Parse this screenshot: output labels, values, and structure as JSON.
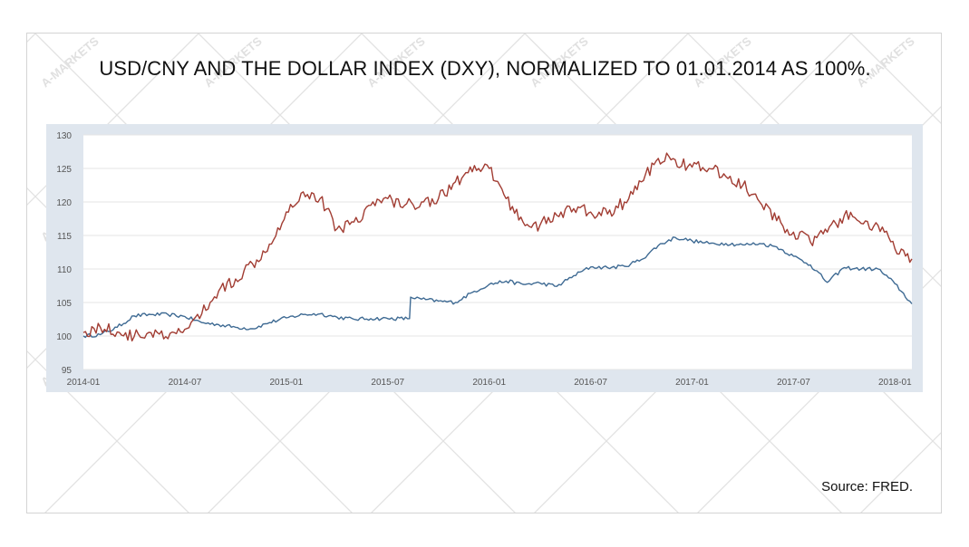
{
  "title": "USD/CNY AND THE DOLLAR INDEX (DXY), NORMALIZED TO 01.01.2014 AS 100%.",
  "source": "Source: FRED.",
  "watermark_text": "A-MARKETS",
  "colors": {
    "usd_cny": "#3e6a93",
    "dxy": "#a13c32",
    "panel": "#dfe6ee",
    "grid": "#e6e6e6"
  },
  "chart_data": {
    "type": "line",
    "title": "USD/CNY AND THE DOLLAR INDEX (DXY), NORMALIZED TO 01.01.2014 AS 100%.",
    "xlabel": "",
    "ylabel": "",
    "x_range": [
      "2014-01",
      "2018-02"
    ],
    "ylim": [
      95,
      130
    ],
    "grid": true,
    "x_tick_labels": [
      "2014-01",
      "2014-07",
      "2015-01",
      "2015-07",
      "2016-01",
      "2016-07",
      "2017-01",
      "2017-07",
      "2018-01"
    ],
    "y_tick_labels": [
      "95",
      "100",
      "105",
      "110",
      "115",
      "120",
      "125",
      "130"
    ],
    "series": [
      {
        "key": "usd_cny",
        "x": [
          "2014-01",
          "2014-02",
          "2014-03",
          "2014-04",
          "2014-05",
          "2014-06",
          "2014-07",
          "2014-08",
          "2014-09",
          "2014-10",
          "2014-11",
          "2014-12",
          "2015-01",
          "2015-02",
          "2015-03",
          "2015-04",
          "2015-05",
          "2015-06",
          "2015-07",
          "2015-08-10",
          "2015-08-12",
          "2015-09",
          "2015-10",
          "2015-11",
          "2015-12",
          "2016-01",
          "2016-02",
          "2016-03",
          "2016-04",
          "2016-05",
          "2016-06",
          "2016-07",
          "2016-08",
          "2016-09",
          "2016-10",
          "2016-11",
          "2016-12",
          "2017-01",
          "2017-02",
          "2017-03",
          "2017-04",
          "2017-05",
          "2017-06",
          "2017-07",
          "2017-08",
          "2017-09",
          "2017-10",
          "2017-11",
          "2017-12",
          "2018-01",
          "2018-02"
        ],
        "values": [
          100.0,
          100.2,
          101.3,
          103.0,
          103.2,
          103.2,
          102.9,
          102.0,
          101.7,
          101.3,
          101.1,
          102.0,
          102.7,
          103.2,
          103.3,
          102.8,
          102.5,
          102.6,
          102.6,
          102.6,
          105.8,
          105.5,
          105.2,
          105.0,
          106.5,
          107.7,
          108.2,
          107.7,
          107.9,
          107.4,
          109.0,
          110.3,
          110.2,
          110.4,
          111.4,
          113.5,
          114.7,
          114.2,
          113.8,
          113.8,
          113.6,
          113.8,
          113.3,
          111.9,
          110.6,
          108.0,
          110.2,
          110.0,
          110.0,
          107.8,
          104.8
        ]
      },
      {
        "key": "dxy",
        "x": [
          "2014-01",
          "2014-02",
          "2014-03",
          "2014-04",
          "2014-05",
          "2014-06",
          "2014-07",
          "2014-08",
          "2014-09",
          "2014-10",
          "2014-11",
          "2014-12",
          "2015-01",
          "2015-02",
          "2015-03",
          "2015-04",
          "2015-05",
          "2015-06",
          "2015-07",
          "2015-08",
          "2015-09",
          "2015-10",
          "2015-11",
          "2015-12",
          "2016-01",
          "2016-02",
          "2016-03",
          "2016-04",
          "2016-05",
          "2016-06",
          "2016-07",
          "2016-08",
          "2016-09",
          "2016-10",
          "2016-11",
          "2016-12",
          "2017-01",
          "2017-02",
          "2017-03",
          "2017-04",
          "2017-05",
          "2017-06",
          "2017-07",
          "2017-08",
          "2017-09",
          "2017-10",
          "2017-11",
          "2017-12",
          "2018-01",
          "2018-02"
        ],
        "values": [
          100.5,
          101.3,
          100.6,
          99.9,
          100.5,
          99.6,
          101.0,
          103.3,
          106.7,
          108.5,
          110.8,
          113.7,
          118.5,
          121.5,
          120.5,
          116.0,
          117.0,
          119.5,
          120.5,
          119.5,
          120.0,
          120.5,
          123.0,
          124.5,
          125.0,
          120.5,
          117.0,
          116.5,
          118.0,
          119.0,
          118.5,
          118.2,
          120.0,
          123.0,
          126.5,
          126.3,
          125.2,
          125.0,
          123.8,
          122.5,
          120.0,
          117.2,
          115.5,
          114.0,
          115.5,
          118.0,
          116.8,
          116.5,
          113.0,
          111.5
        ]
      }
    ]
  }
}
